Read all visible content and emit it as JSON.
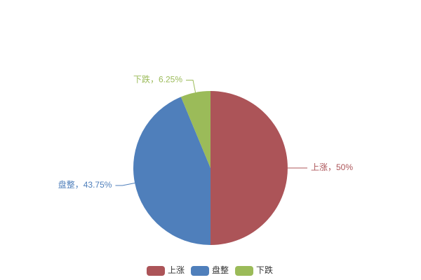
{
  "chart_data": {
    "type": "pie",
    "categories": [
      "上涨",
      "盘整",
      "下跌"
    ],
    "values": [
      50,
      43.75,
      6.25
    ],
    "value_labels": [
      "上涨，50%",
      "盘整，43.75%",
      "下跌，6.25%"
    ],
    "colors": [
      "#ac5458",
      "#4f7fbb",
      "#9bbb59"
    ],
    "legend": "bottom"
  }
}
